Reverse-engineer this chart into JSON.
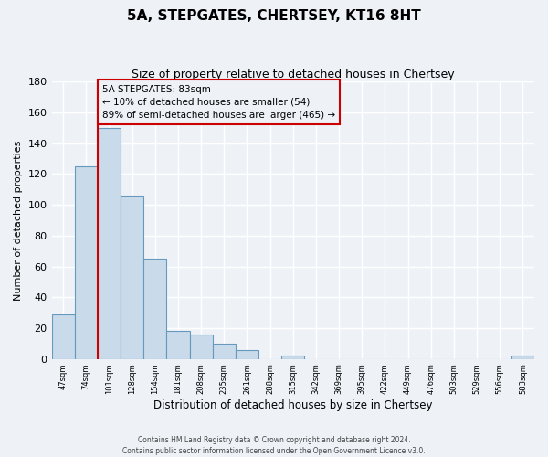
{
  "title": "5A, STEPGATES, CHERTSEY, KT16 8HT",
  "subtitle": "Size of property relative to detached houses in Chertsey",
  "xlabel": "Distribution of detached houses by size in Chertsey",
  "ylabel": "Number of detached properties",
  "bin_labels": [
    "47sqm",
    "74sqm",
    "101sqm",
    "128sqm",
    "154sqm",
    "181sqm",
    "208sqm",
    "235sqm",
    "261sqm",
    "288sqm",
    "315sqm",
    "342sqm",
    "369sqm",
    "395sqm",
    "422sqm",
    "449sqm",
    "476sqm",
    "503sqm",
    "529sqm",
    "556sqm",
    "583sqm"
  ],
  "bar_values": [
    29,
    125,
    150,
    106,
    65,
    18,
    16,
    10,
    6,
    0,
    2,
    0,
    0,
    0,
    0,
    0,
    0,
    0,
    0,
    0,
    2
  ],
  "bar_color": "#c9daea",
  "bar_edge_color": "#6699bb",
  "ylim": [
    0,
    180
  ],
  "yticks": [
    0,
    20,
    40,
    60,
    80,
    100,
    120,
    140,
    160,
    180
  ],
  "property_line_color": "#cc0000",
  "annotation_title": "5A STEPGATES: 83sqm",
  "annotation_line1": "← 10% of detached houses are smaller (54)",
  "annotation_line2": "89% of semi-detached houses are larger (465) →",
  "annotation_box_color": "#cc0000",
  "footnote1": "Contains HM Land Registry data © Crown copyright and database right 2024.",
  "footnote2": "Contains public sector information licensed under the Open Government Licence v3.0.",
  "background_color": "#eef2f7",
  "grid_color": "#ffffff"
}
